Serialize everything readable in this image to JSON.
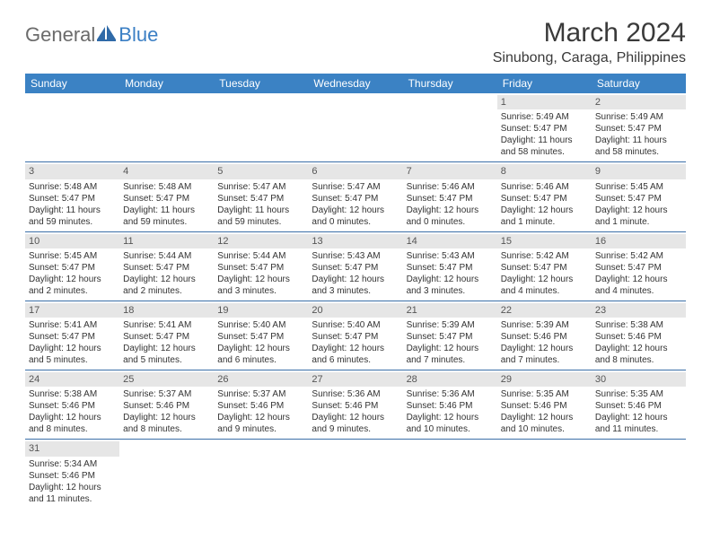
{
  "logo": {
    "text1": "General",
    "text2": "Blue"
  },
  "title": "March 2024",
  "location": "Sinubong, Caraga, Philippines",
  "colors": {
    "header_bg": "#3b82c4",
    "header_text": "#ffffff",
    "daynum_bg": "#e6e6e6",
    "row_border": "#3b6fa8",
    "logo_gray": "#6b6b6b",
    "logo_blue": "#3b7fc4"
  },
  "day_headers": [
    "Sunday",
    "Monday",
    "Tuesday",
    "Wednesday",
    "Thursday",
    "Friday",
    "Saturday"
  ],
  "weeks": [
    [
      {
        "empty": true
      },
      {
        "empty": true
      },
      {
        "empty": true
      },
      {
        "empty": true
      },
      {
        "empty": true
      },
      {
        "day": "1",
        "sunrise": "Sunrise: 5:49 AM",
        "sunset": "Sunset: 5:47 PM",
        "daylight": "Daylight: 11 hours and 58 minutes."
      },
      {
        "day": "2",
        "sunrise": "Sunrise: 5:49 AM",
        "sunset": "Sunset: 5:47 PM",
        "daylight": "Daylight: 11 hours and 58 minutes."
      }
    ],
    [
      {
        "day": "3",
        "sunrise": "Sunrise: 5:48 AM",
        "sunset": "Sunset: 5:47 PM",
        "daylight": "Daylight: 11 hours and 59 minutes."
      },
      {
        "day": "4",
        "sunrise": "Sunrise: 5:48 AM",
        "sunset": "Sunset: 5:47 PM",
        "daylight": "Daylight: 11 hours and 59 minutes."
      },
      {
        "day": "5",
        "sunrise": "Sunrise: 5:47 AM",
        "sunset": "Sunset: 5:47 PM",
        "daylight": "Daylight: 11 hours and 59 minutes."
      },
      {
        "day": "6",
        "sunrise": "Sunrise: 5:47 AM",
        "sunset": "Sunset: 5:47 PM",
        "daylight": "Daylight: 12 hours and 0 minutes."
      },
      {
        "day": "7",
        "sunrise": "Sunrise: 5:46 AM",
        "sunset": "Sunset: 5:47 PM",
        "daylight": "Daylight: 12 hours and 0 minutes."
      },
      {
        "day": "8",
        "sunrise": "Sunrise: 5:46 AM",
        "sunset": "Sunset: 5:47 PM",
        "daylight": "Daylight: 12 hours and 1 minute."
      },
      {
        "day": "9",
        "sunrise": "Sunrise: 5:45 AM",
        "sunset": "Sunset: 5:47 PM",
        "daylight": "Daylight: 12 hours and 1 minute."
      }
    ],
    [
      {
        "day": "10",
        "sunrise": "Sunrise: 5:45 AM",
        "sunset": "Sunset: 5:47 PM",
        "daylight": "Daylight: 12 hours and 2 minutes."
      },
      {
        "day": "11",
        "sunrise": "Sunrise: 5:44 AM",
        "sunset": "Sunset: 5:47 PM",
        "daylight": "Daylight: 12 hours and 2 minutes."
      },
      {
        "day": "12",
        "sunrise": "Sunrise: 5:44 AM",
        "sunset": "Sunset: 5:47 PM",
        "daylight": "Daylight: 12 hours and 3 minutes."
      },
      {
        "day": "13",
        "sunrise": "Sunrise: 5:43 AM",
        "sunset": "Sunset: 5:47 PM",
        "daylight": "Daylight: 12 hours and 3 minutes."
      },
      {
        "day": "14",
        "sunrise": "Sunrise: 5:43 AM",
        "sunset": "Sunset: 5:47 PM",
        "daylight": "Daylight: 12 hours and 3 minutes."
      },
      {
        "day": "15",
        "sunrise": "Sunrise: 5:42 AM",
        "sunset": "Sunset: 5:47 PM",
        "daylight": "Daylight: 12 hours and 4 minutes."
      },
      {
        "day": "16",
        "sunrise": "Sunrise: 5:42 AM",
        "sunset": "Sunset: 5:47 PM",
        "daylight": "Daylight: 12 hours and 4 minutes."
      }
    ],
    [
      {
        "day": "17",
        "sunrise": "Sunrise: 5:41 AM",
        "sunset": "Sunset: 5:47 PM",
        "daylight": "Daylight: 12 hours and 5 minutes."
      },
      {
        "day": "18",
        "sunrise": "Sunrise: 5:41 AM",
        "sunset": "Sunset: 5:47 PM",
        "daylight": "Daylight: 12 hours and 5 minutes."
      },
      {
        "day": "19",
        "sunrise": "Sunrise: 5:40 AM",
        "sunset": "Sunset: 5:47 PM",
        "daylight": "Daylight: 12 hours and 6 minutes."
      },
      {
        "day": "20",
        "sunrise": "Sunrise: 5:40 AM",
        "sunset": "Sunset: 5:47 PM",
        "daylight": "Daylight: 12 hours and 6 minutes."
      },
      {
        "day": "21",
        "sunrise": "Sunrise: 5:39 AM",
        "sunset": "Sunset: 5:47 PM",
        "daylight": "Daylight: 12 hours and 7 minutes."
      },
      {
        "day": "22",
        "sunrise": "Sunrise: 5:39 AM",
        "sunset": "Sunset: 5:46 PM",
        "daylight": "Daylight: 12 hours and 7 minutes."
      },
      {
        "day": "23",
        "sunrise": "Sunrise: 5:38 AM",
        "sunset": "Sunset: 5:46 PM",
        "daylight": "Daylight: 12 hours and 8 minutes."
      }
    ],
    [
      {
        "day": "24",
        "sunrise": "Sunrise: 5:38 AM",
        "sunset": "Sunset: 5:46 PM",
        "daylight": "Daylight: 12 hours and 8 minutes."
      },
      {
        "day": "25",
        "sunrise": "Sunrise: 5:37 AM",
        "sunset": "Sunset: 5:46 PM",
        "daylight": "Daylight: 12 hours and 8 minutes."
      },
      {
        "day": "26",
        "sunrise": "Sunrise: 5:37 AM",
        "sunset": "Sunset: 5:46 PM",
        "daylight": "Daylight: 12 hours and 9 minutes."
      },
      {
        "day": "27",
        "sunrise": "Sunrise: 5:36 AM",
        "sunset": "Sunset: 5:46 PM",
        "daylight": "Daylight: 12 hours and 9 minutes."
      },
      {
        "day": "28",
        "sunrise": "Sunrise: 5:36 AM",
        "sunset": "Sunset: 5:46 PM",
        "daylight": "Daylight: 12 hours and 10 minutes."
      },
      {
        "day": "29",
        "sunrise": "Sunrise: 5:35 AM",
        "sunset": "Sunset: 5:46 PM",
        "daylight": "Daylight: 12 hours and 10 minutes."
      },
      {
        "day": "30",
        "sunrise": "Sunrise: 5:35 AM",
        "sunset": "Sunset: 5:46 PM",
        "daylight": "Daylight: 12 hours and 11 minutes."
      }
    ],
    [
      {
        "day": "31",
        "sunrise": "Sunrise: 5:34 AM",
        "sunset": "Sunset: 5:46 PM",
        "daylight": "Daylight: 12 hours and 11 minutes."
      },
      {
        "empty": true
      },
      {
        "empty": true
      },
      {
        "empty": true
      },
      {
        "empty": true
      },
      {
        "empty": true
      },
      {
        "empty": true
      }
    ]
  ]
}
